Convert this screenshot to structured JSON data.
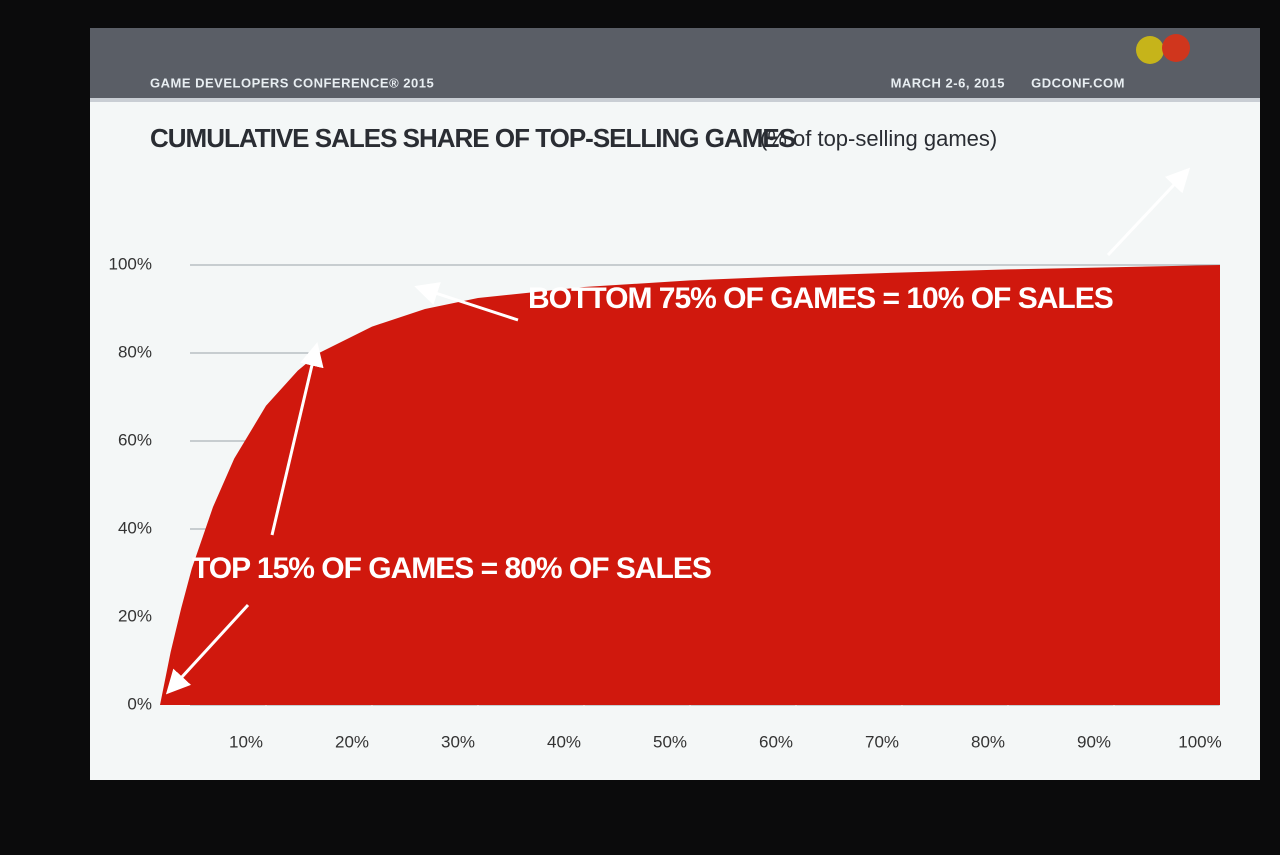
{
  "chart_data": {
    "type": "area",
    "header_left": "GAME DEVELOPERS CONFERENCE® 2015",
    "date": "MARCH 2-6, 2015",
    "site": "GDCONF.COM",
    "title": "CUMULATIVE SALES SHARE OF TOP-SELLING GAMES",
    "subtitle": "(% of top-selling games)",
    "x": [
      0,
      1,
      2,
      3,
      5,
      7,
      10,
      13,
      15,
      20,
      25,
      30,
      40,
      50,
      60,
      70,
      80,
      90,
      100
    ],
    "values": [
      0,
      12,
      22,
      31,
      45,
      56,
      68,
      76,
      80,
      86,
      90,
      92.5,
      95,
      96.5,
      97.5,
      98.3,
      99,
      99.5,
      100
    ],
    "color": "#d0180d",
    "xlim": [
      0,
      100
    ],
    "ylim": [
      0,
      100
    ],
    "xticks": [
      {
        "value": 10,
        "label": "10%"
      },
      {
        "value": 20,
        "label": "20%"
      },
      {
        "value": 30,
        "label": "30%"
      },
      {
        "value": 40,
        "label": "40%"
      },
      {
        "value": 50,
        "label": "50%"
      },
      {
        "value": 60,
        "label": "60%"
      },
      {
        "value": 70,
        "label": "70%"
      },
      {
        "value": 80,
        "label": "80%"
      },
      {
        "value": 90,
        "label": "90%"
      },
      {
        "value": 100,
        "label": "100%"
      }
    ],
    "yticks": [
      {
        "value": 0,
        "label": "0%"
      },
      {
        "value": 20,
        "label": "20%"
      },
      {
        "value": 40,
        "label": "40%"
      },
      {
        "value": 60,
        "label": "60%"
      },
      {
        "value": 80,
        "label": "80%"
      },
      {
        "value": 100,
        "label": "100%"
      }
    ],
    "grid": true,
    "annotations": [
      "TOP 15% OF GAMES = 80% OF SALES",
      "BOTTOM 75% OF GAMES = 10% OF SALES"
    ]
  }
}
